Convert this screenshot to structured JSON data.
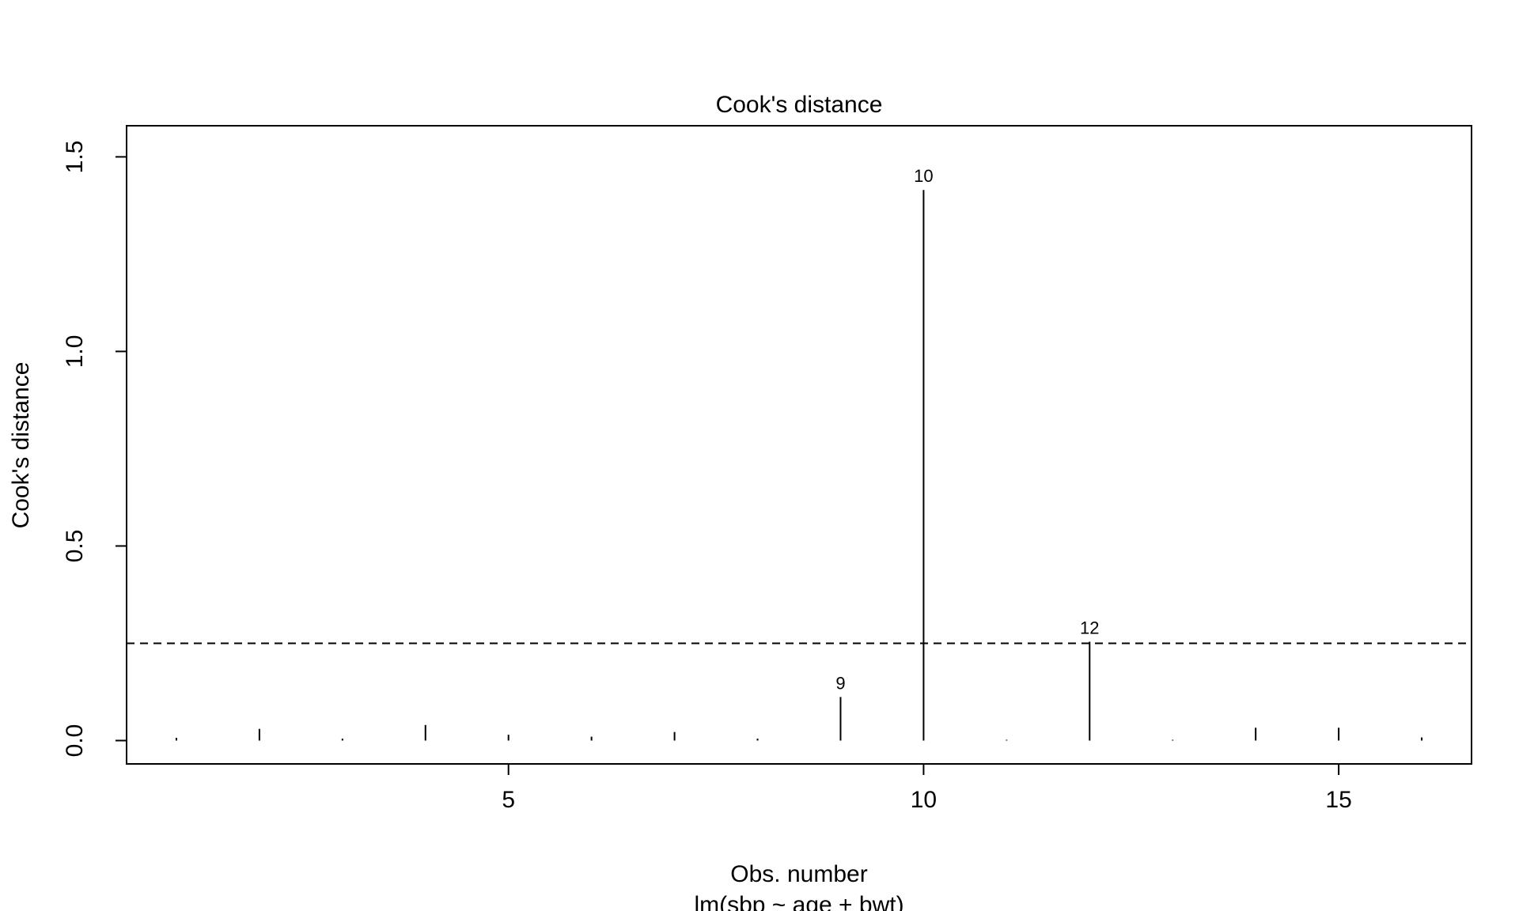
{
  "chart_data": {
    "type": "bar",
    "subtype": "spike",
    "title": "Cook's distance",
    "xlabel": "Obs. number",
    "subtitle": "lm(sbp ~ age + bwt)",
    "ylabel": "Cook's distance",
    "x": [
      1,
      2,
      3,
      4,
      5,
      6,
      7,
      8,
      9,
      10,
      11,
      12,
      13,
      14,
      15,
      16
    ],
    "values": [
      0.007,
      0.03,
      0.005,
      0.04,
      0.015,
      0.01,
      0.022,
      0.005,
      0.112,
      1.415,
      0.002,
      0.254,
      0.002,
      0.033,
      0.033,
      0.008
    ],
    "xlim": [
      0.4,
      16.6
    ],
    "ylim": [
      -0.06,
      1.58
    ],
    "xticks": [
      5,
      10,
      15
    ],
    "yticks": [
      0.0,
      0.5,
      1.0,
      1.5
    ],
    "ytick_labels": [
      "0.0",
      "0.5",
      "1.0",
      "1.5"
    ],
    "reference_line": {
      "y": 0.25,
      "style": "dashed"
    },
    "point_labels": [
      {
        "x": 9,
        "label": "9"
      },
      {
        "x": 10,
        "label": "10"
      },
      {
        "x": 12,
        "label": "12"
      }
    ],
    "grid": false,
    "line_color": "#000000"
  }
}
